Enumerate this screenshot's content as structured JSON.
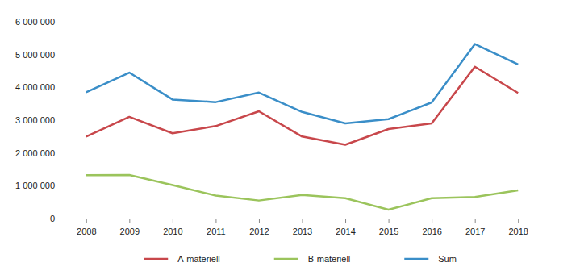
{
  "chart_data": {
    "type": "line",
    "categories": [
      "2008",
      "2009",
      "2010",
      "2011",
      "2012",
      "2013",
      "2014",
      "2015",
      "2016",
      "2017",
      "2018"
    ],
    "series": [
      {
        "name": "A-materiell",
        "color": "#c8474b",
        "values": [
          2500000,
          3100000,
          2600000,
          2820000,
          3270000,
          2500000,
          2250000,
          2730000,
          2900000,
          4630000,
          3830000
        ]
      },
      {
        "name": "B-materiell",
        "color": "#9bc45c",
        "values": [
          1320000,
          1330000,
          1020000,
          700000,
          550000,
          720000,
          620000,
          270000,
          620000,
          660000,
          860000
        ]
      },
      {
        "name": "Sum",
        "color": "#3a8ec8",
        "values": [
          3850000,
          4450000,
          3630000,
          3550000,
          3840000,
          3250000,
          2900000,
          3030000,
          3540000,
          5320000,
          4700000
        ]
      }
    ],
    "ylim": [
      0,
      6000000
    ],
    "yticks": [
      0,
      {
        "value": 1000000,
        "label": "1 000 000"
      },
      {
        "value": 2000000,
        "label": "2 000 000"
      },
      {
        "value": 3000000,
        "label": "3 000 000"
      },
      {
        "value": 4000000,
        "label": "4 000 000"
      },
      {
        "value": 5000000,
        "label": "5 000 000"
      },
      {
        "value": 6000000,
        "label": "6 000 000"
      }
    ],
    "grid": false,
    "legend": "bottom"
  }
}
